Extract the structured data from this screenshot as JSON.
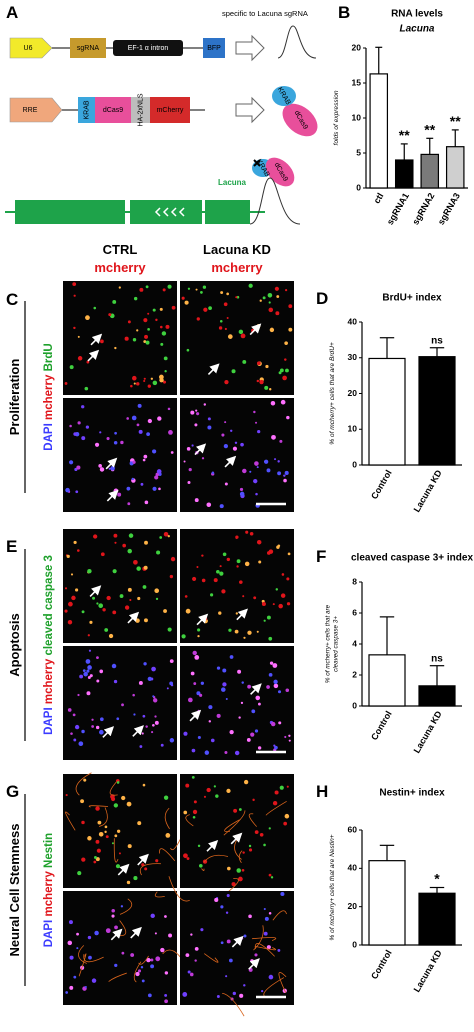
{
  "panel_labels": [
    "A",
    "B",
    "C",
    "D",
    "E",
    "F",
    "G",
    "H"
  ],
  "diagram": {
    "note": "specific to Lacuna sgRNA",
    "construct1": [
      "U6",
      "sgRNA",
      "EF-1 α intron",
      "BFP"
    ],
    "construct2": [
      "RRE",
      "KRAB",
      "dCas9",
      "HA-2xNLS",
      "mCherry"
    ],
    "gene": "Lacuna"
  },
  "micrographs": {
    "columns": [
      "CTRL",
      "Lacuna KD"
    ],
    "column_stain": "mcherry",
    "rows": [
      {
        "title": "Proliferation",
        "channels": [
          {
            "name": "DAPI",
            "color": "#3b3bff"
          },
          {
            "name": "mcherry",
            "color": "#e0151b"
          },
          {
            "name": "BrdU",
            "color": "#1fa12c"
          }
        ]
      },
      {
        "title": "Apoptosis",
        "channels": [
          {
            "name": "DAPI",
            "color": "#3b3bff"
          },
          {
            "name": "mcherry",
            "color": "#e0151b"
          },
          {
            "name": "cleaved caspase 3",
            "color": "#1fa12c"
          }
        ]
      },
      {
        "title": "Neural Cell Stemness",
        "channels": [
          {
            "name": "DAPI",
            "color": "#3b3bff"
          },
          {
            "name": "mcherry",
            "color": "#e0151b"
          },
          {
            "name": "Nestin",
            "color": "#1fa12c"
          }
        ]
      }
    ]
  },
  "chart_data": [
    {
      "type": "bar",
      "title": "RNA levels",
      "subtitle": "Lacuna",
      "y_label": [
        "folds of expression"
      ],
      "categories": [
        "ctl",
        "sgRNA1",
        "sgRNA2",
        "sgRNA3"
      ],
      "values": [
        16.3,
        4.0,
        4.8,
        5.9
      ],
      "errors": [
        3.8,
        2.3,
        2.3,
        2.4
      ],
      "colors": [
        "#ffffff",
        "#000000",
        "#7a7a7a",
        "#cfcfcf"
      ],
      "ylim": [
        0,
        20
      ],
      "yticks": [
        0,
        5,
        10,
        15,
        20
      ],
      "annotations": [
        {
          "category": "sgRNA1",
          "text": "**"
        },
        {
          "category": "sgRNA2",
          "text": "**"
        },
        {
          "category": "sgRNA3",
          "text": "**"
        }
      ]
    },
    {
      "type": "bar",
      "title": "BrdU+ index",
      "y_label": [
        "% of mcherry+ cells that are BrdU+"
      ],
      "categories": [
        "Control",
        "Lacuna KD"
      ],
      "values": [
        29.8,
        30.3
      ],
      "errors": [
        5.8,
        2.5
      ],
      "colors": [
        "#ffffff",
        "#000000"
      ],
      "ylim": [
        0,
        40
      ],
      "yticks": [
        0,
        10,
        20,
        30,
        40
      ],
      "annotations": [
        {
          "category": "Lacuna KD",
          "text": "ns"
        }
      ]
    },
    {
      "type": "bar",
      "title": "cleaved caspase 3+ index",
      "y_label": [
        "% of mcherry+ cells that are",
        "cleaved caspase 3+"
      ],
      "categories": [
        "Control",
        "Lacuna KD"
      ],
      "values": [
        3.3,
        1.3
      ],
      "errors": [
        2.45,
        1.3
      ],
      "colors": [
        "#ffffff",
        "#000000"
      ],
      "ylim": [
        0,
        8
      ],
      "yticks": [
        0,
        2,
        4,
        6,
        8
      ],
      "annotations": [
        {
          "category": "Lacuna KD",
          "text": "ns"
        }
      ]
    },
    {
      "type": "bar",
      "title": "Nestin+ index",
      "y_label": [
        "% of mcherry+ cells that are Nestin+"
      ],
      "categories": [
        "Control",
        "Lacuna KD"
      ],
      "values": [
        44,
        27
      ],
      "errors": [
        8,
        3
      ],
      "colors": [
        "#ffffff",
        "#000000"
      ],
      "ylim": [
        0,
        60
      ],
      "yticks": [
        0,
        20,
        40,
        60
      ],
      "annotations": [
        {
          "category": "Lacuna KD",
          "text": "*"
        }
      ]
    }
  ]
}
